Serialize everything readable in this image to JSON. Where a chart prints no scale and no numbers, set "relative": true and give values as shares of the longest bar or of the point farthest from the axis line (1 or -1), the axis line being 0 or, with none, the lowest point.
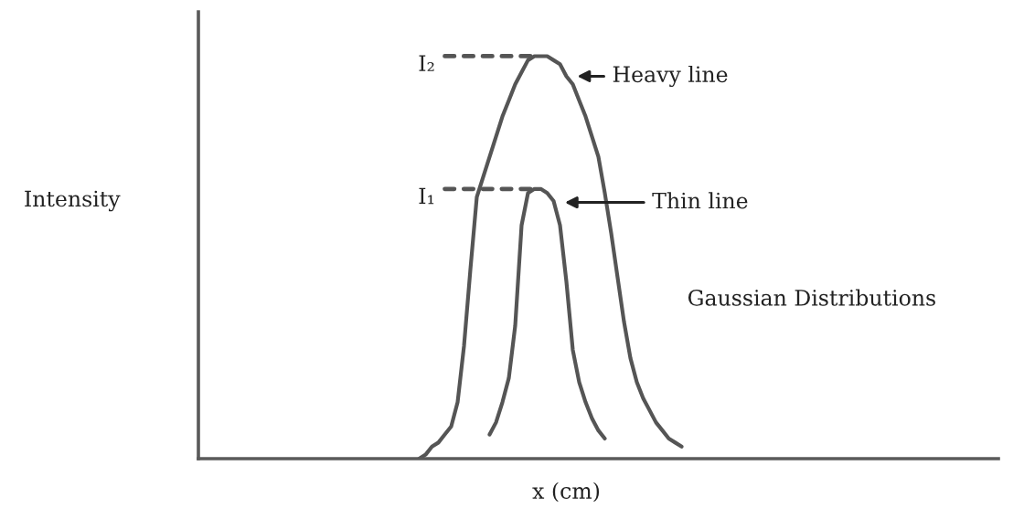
{
  "chart_data": {
    "type": "line",
    "relative": true,
    "xlabel": "x (cm)",
    "ylabel": "Intensity",
    "legend": "top right",
    "annotations": [
      "Gaussian Distributions"
    ],
    "categories": [
      null,
      null,
      null,
      null,
      null,
      null,
      null,
      null,
      null,
      null,
      null,
      null,
      null,
      null,
      null,
      null,
      null,
      null,
      null,
      null,
      null,
      null,
      null,
      null,
      null,
      null,
      null,
      null,
      null,
      null,
      null,
      null,
      null,
      null,
      null,
      null,
      null,
      null,
      null,
      null,
      null,
      null,
      null,
      null,
      null,
      null,
      null,
      null,
      null,
      null,
      null,
      null,
      null,
      null,
      null,
      null,
      null,
      null,
      null,
      null,
      null,
      null,
      null,
      null,
      null,
      null,
      null,
      null,
      null,
      null,
      null,
      null,
      null,
      null,
      null,
      null,
      null,
      null,
      null,
      null,
      null,
      null,
      null,
      null,
      null,
      null,
      null,
      null,
      null,
      null,
      null,
      null,
      null,
      null,
      null,
      null,
      null,
      null,
      null,
      null,
      null,
      null,
      null,
      null,
      null,
      null,
      null,
      null,
      null,
      null,
      null,
      null,
      null,
      null,
      null,
      null,
      null,
      null,
      null,
      null,
      null,
      null,
      null,
      null,
      null
    ],
    "series": [
      {
        "name": "Heavy line",
        "color": "#555555",
        "values": [
          null,
          null,
          null,
          null,
          null,
          null,
          null,
          null,
          null,
          null,
          null,
          null,
          null,
          null,
          null,
          null,
          null,
          null,
          null,
          null,
          null,
          null,
          null,
          null,
          null,
          null,
          null,
          null,
          null,
          null,
          null,
          null,
          null,
          null,
          0,
          0.01,
          0.03,
          0.04,
          0.06,
          0.08,
          0.14,
          0.28,
          0.47,
          0.65,
          0.7,
          0.75,
          0.8,
          0.85,
          0.89,
          0.93,
          0.96,
          0.99,
          1.0,
          1.0,
          1.0,
          0.99,
          0.98,
          0.95,
          0.93,
          0.89,
          0.85,
          0.8,
          0.75,
          0.66,
          0.56,
          0.45,
          0.34,
          0.25,
          0.19,
          0.15,
          0.12,
          0.09,
          0.07,
          0.05,
          0.04,
          0.03,
          null,
          null,
          null,
          null,
          null,
          null,
          null,
          null,
          null,
          null,
          null,
          null,
          null,
          null,
          null,
          null,
          null,
          null,
          null,
          null,
          null,
          null,
          null,
          null,
          null,
          null,
          null,
          null,
          null,
          null,
          null,
          null,
          null,
          null,
          null,
          null,
          null,
          null,
          null,
          null,
          null,
          null,
          null,
          null,
          null,
          null,
          null,
          null,
          null
        ]
      },
      {
        "name": "Thin line",
        "color": "#555555",
        "values": [
          null,
          null,
          null,
          null,
          null,
          null,
          null,
          null,
          null,
          null,
          null,
          null,
          null,
          null,
          null,
          null,
          null,
          null,
          null,
          null,
          null,
          null,
          null,
          null,
          null,
          null,
          null,
          null,
          null,
          null,
          null,
          null,
          null,
          null,
          null,
          null,
          null,
          null,
          null,
          null,
          null,
          null,
          null,
          null,
          null,
          0.06,
          0.09,
          0.14,
          0.2,
          0.33,
          0.58,
          0.66,
          0.67,
          0.67,
          0.66,
          0.64,
          0.58,
          0.44,
          0.27,
          0.19,
          0.14,
          0.1,
          0.07,
          0.05,
          null,
          null,
          null,
          null,
          null,
          null,
          null,
          null,
          null,
          null,
          null,
          null,
          null,
          null,
          null,
          null,
          null,
          null,
          null,
          null,
          null,
          null,
          null,
          null,
          null,
          null,
          null,
          null,
          null,
          null,
          null,
          null,
          null,
          null,
          null,
          null,
          null,
          null,
          null,
          null,
          null,
          null,
          null,
          null,
          null,
          null,
          null,
          null,
          null,
          null,
          null,
          null,
          null,
          null,
          null,
          null,
          null,
          null,
          null,
          null,
          null
        ]
      }
    ],
    "ref_lines": [
      {
        "axis": "y",
        "value": 1,
        "label": "I₂",
        "line_style": "dashed",
        "color": "#555555"
      },
      {
        "axis": "y",
        "value": 0.67,
        "label": "I₁",
        "line_style": "dashed",
        "color": "#555555"
      }
    ]
  }
}
